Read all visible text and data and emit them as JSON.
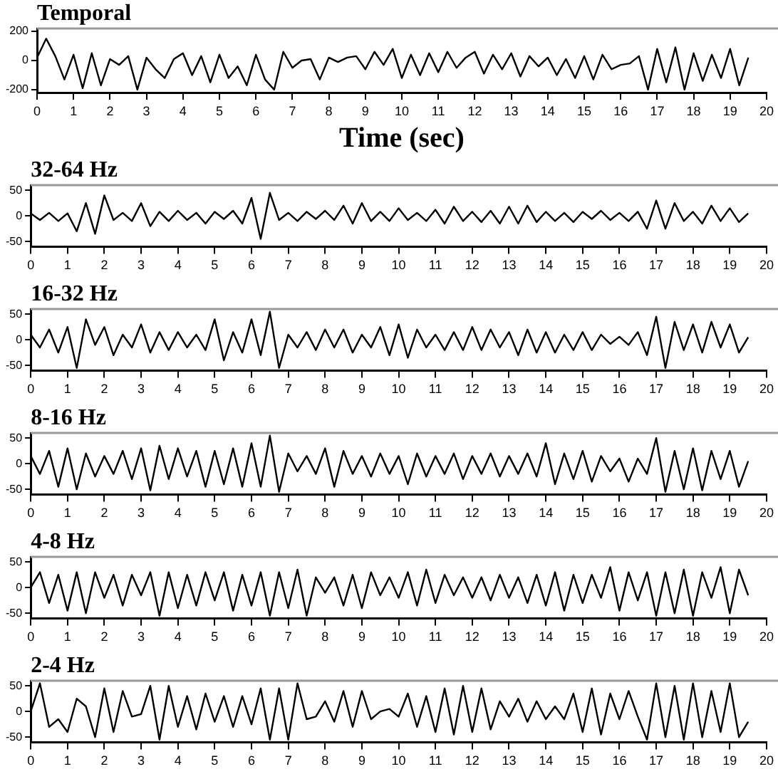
{
  "chart_data": [
    {
      "type": "line",
      "title": "Temporal",
      "xlabel": "Time (sec)",
      "x": [
        0,
        0.25,
        0.5,
        0.75,
        1,
        1.25,
        1.5,
        1.75,
        2,
        2.25,
        2.5,
        2.75,
        3,
        3.25,
        3.5,
        3.75,
        4,
        4.25,
        4.5,
        4.75,
        5,
        5.25,
        5.5,
        5.75,
        6,
        6.25,
        6.5,
        6.75,
        7,
        7.25,
        7.5,
        7.75,
        8,
        8.25,
        8.5,
        8.75,
        9,
        9.25,
        9.5,
        9.75,
        10,
        10.25,
        10.5,
        10.75,
        11,
        11.25,
        11.5,
        11.75,
        12,
        12.25,
        12.5,
        12.75,
        13,
        13.25,
        13.5,
        13.75,
        14,
        14.25,
        14.5,
        14.75,
        15,
        15.25,
        15.5,
        15.75,
        16,
        16.25,
        16.5,
        16.75,
        17,
        17.25,
        17.5,
        17.75,
        18,
        18.25,
        18.5,
        18.75,
        19,
        19.25,
        19.5
      ],
      "values": [
        20,
        150,
        30,
        -130,
        40,
        -190,
        50,
        -170,
        10,
        -30,
        30,
        -200,
        20,
        -60,
        -120,
        10,
        50,
        -100,
        30,
        -150,
        40,
        -120,
        -40,
        -170,
        40,
        -130,
        -200,
        60,
        -50,
        0,
        10,
        -130,
        20,
        -10,
        20,
        30,
        -60,
        60,
        -30,
        80,
        -120,
        40,
        -100,
        50,
        -80,
        60,
        -50,
        20,
        60,
        -90,
        40,
        -60,
        50,
        -110,
        30,
        -40,
        20,
        -100,
        10,
        -120,
        30,
        -130,
        40,
        -60,
        -30,
        -20,
        30,
        -200,
        80,
        -150,
        90,
        -200,
        50,
        -140,
        40,
        -120,
        80,
        -170,
        20
      ],
      "color": "#000000",
      "xlim": [
        0,
        20
      ],
      "xticks": [
        0,
        1,
        2,
        3,
        4,
        5,
        6,
        7,
        8,
        9,
        10,
        11,
        12,
        13,
        14,
        15,
        16,
        17,
        18,
        19,
        20
      ],
      "ylim": [
        -220,
        220
      ],
      "yticks": [
        -200,
        0,
        200
      ],
      "legend": false
    },
    {
      "type": "line",
      "title": "32-64 Hz",
      "x": [
        0,
        0.25,
        0.5,
        0.75,
        1,
        1.25,
        1.5,
        1.75,
        2,
        2.25,
        2.5,
        2.75,
        3,
        3.25,
        3.5,
        3.75,
        4,
        4.25,
        4.5,
        4.75,
        5,
        5.25,
        5.5,
        5.75,
        6,
        6.25,
        6.5,
        6.75,
        7,
        7.25,
        7.5,
        7.75,
        8,
        8.25,
        8.5,
        8.75,
        9,
        9.25,
        9.5,
        9.75,
        10,
        10.25,
        10.5,
        10.75,
        11,
        11.25,
        11.5,
        11.75,
        12,
        12.25,
        12.5,
        12.75,
        13,
        13.25,
        13.5,
        13.75,
        14,
        14.25,
        14.5,
        14.75,
        15,
        15.25,
        15.5,
        15.75,
        16,
        16.25,
        16.5,
        16.75,
        17,
        17.25,
        17.5,
        17.75,
        18,
        18.25,
        18.5,
        18.75,
        19,
        19.25,
        19.5
      ],
      "values": [
        5,
        -8,
        6,
        -10,
        5,
        -30,
        25,
        -35,
        40,
        -8,
        6,
        -10,
        25,
        -20,
        8,
        -10,
        10,
        -8,
        6,
        -15,
        8,
        -6,
        10,
        -15,
        35,
        -45,
        45,
        -8,
        6,
        -10,
        8,
        -6,
        10,
        -8,
        20,
        -15,
        25,
        -10,
        8,
        -10,
        15,
        -8,
        6,
        -10,
        12,
        -15,
        18,
        -10,
        8,
        -12,
        10,
        -15,
        18,
        -15,
        20,
        -12,
        8,
        -10,
        6,
        -12,
        8,
        -6,
        10,
        -8,
        6,
        -10,
        8,
        -25,
        30,
        -25,
        25,
        -10,
        8,
        -15,
        20,
        -10,
        15,
        -12,
        5
      ],
      "color": "#000000",
      "xlim": [
        0,
        20
      ],
      "xticks": [
        0,
        1,
        2,
        3,
        4,
        5,
        6,
        7,
        8,
        9,
        10,
        11,
        12,
        13,
        14,
        15,
        16,
        17,
        18,
        19,
        20
      ],
      "ylim": [
        -60,
        60
      ],
      "yticks": [
        -50,
        0,
        50
      ],
      "legend": false
    },
    {
      "type": "line",
      "title": "16-32 Hz",
      "x": [
        0,
        0.25,
        0.5,
        0.75,
        1,
        1.25,
        1.5,
        1.75,
        2,
        2.25,
        2.5,
        2.75,
        3,
        3.25,
        3.5,
        3.75,
        4,
        4.25,
        4.5,
        4.75,
        5,
        5.25,
        5.5,
        5.75,
        6,
        6.25,
        6.5,
        6.75,
        7,
        7.25,
        7.5,
        7.75,
        8,
        8.25,
        8.5,
        8.75,
        9,
        9.25,
        9.5,
        9.75,
        10,
        10.25,
        10.5,
        10.75,
        11,
        11.25,
        11.5,
        11.75,
        12,
        12.25,
        12.5,
        12.75,
        13,
        13.25,
        13.5,
        13.75,
        14,
        14.25,
        14.5,
        14.75,
        15,
        15.25,
        15.5,
        15.75,
        16,
        16.25,
        16.5,
        16.75,
        17,
        17.25,
        17.5,
        17.75,
        18,
        18.25,
        18.5,
        18.75,
        19,
        19.25,
        19.5
      ],
      "values": [
        10,
        -15,
        20,
        -25,
        25,
        -55,
        40,
        -10,
        25,
        -30,
        10,
        -15,
        30,
        -25,
        15,
        -20,
        15,
        -15,
        10,
        -20,
        40,
        -40,
        15,
        -25,
        40,
        -30,
        55,
        -55,
        10,
        -15,
        15,
        -20,
        20,
        -15,
        20,
        -25,
        10,
        -15,
        25,
        -30,
        30,
        -35,
        20,
        -15,
        10,
        -20,
        15,
        -20,
        25,
        -20,
        20,
        -15,
        15,
        -30,
        20,
        -25,
        15,
        -25,
        10,
        -20,
        15,
        -20,
        10,
        -8,
        6,
        -10,
        15,
        -30,
        45,
        -55,
        35,
        -20,
        30,
        -25,
        35,
        -15,
        30,
        -25,
        5
      ],
      "color": "#000000",
      "xlim": [
        0,
        20
      ],
      "xticks": [
        0,
        1,
        2,
        3,
        4,
        5,
        6,
        7,
        8,
        9,
        10,
        11,
        12,
        13,
        14,
        15,
        16,
        17,
        18,
        19,
        20
      ],
      "ylim": [
        -60,
        60
      ],
      "yticks": [
        -50,
        0,
        50
      ],
      "legend": false
    },
    {
      "type": "line",
      "title": "8-16 Hz",
      "x": [
        0,
        0.25,
        0.5,
        0.75,
        1,
        1.25,
        1.5,
        1.75,
        2,
        2.25,
        2.5,
        2.75,
        3,
        3.25,
        3.5,
        3.75,
        4,
        4.25,
        4.5,
        4.75,
        5,
        5.25,
        5.5,
        5.75,
        6,
        6.25,
        6.5,
        6.75,
        7,
        7.25,
        7.5,
        7.75,
        8,
        8.25,
        8.5,
        8.75,
        9,
        9.25,
        9.5,
        9.75,
        10,
        10.25,
        10.5,
        10.75,
        11,
        11.25,
        11.5,
        11.75,
        12,
        12.25,
        12.5,
        12.75,
        13,
        13.25,
        13.5,
        13.75,
        14,
        14.25,
        14.5,
        14.75,
        15,
        15.25,
        15.5,
        15.75,
        16,
        16.25,
        16.5,
        16.75,
        17,
        17.25,
        17.5,
        17.75,
        18,
        18.25,
        18.5,
        18.75,
        19,
        19.25,
        19.5
      ],
      "values": [
        15,
        -20,
        25,
        -45,
        30,
        -50,
        20,
        -25,
        15,
        -20,
        25,
        -30,
        30,
        -52,
        35,
        -30,
        30,
        -25,
        25,
        -45,
        25,
        -40,
        30,
        -45,
        40,
        -45,
        55,
        -55,
        20,
        -15,
        15,
        -20,
        30,
        -45,
        25,
        -20,
        15,
        -25,
        20,
        -20,
        15,
        -40,
        20,
        -25,
        15,
        -20,
        20,
        -30,
        15,
        -20,
        20,
        -25,
        15,
        -20,
        20,
        -25,
        40,
        -40,
        20,
        -30,
        25,
        -35,
        15,
        -15,
        10,
        -35,
        10,
        -20,
        50,
        -55,
        25,
        -50,
        30,
        -52,
        25,
        -30,
        25,
        -45,
        5
      ],
      "color": "#000000",
      "xlim": [
        0,
        20
      ],
      "xticks": [
        0,
        1,
        2,
        3,
        4,
        5,
        6,
        7,
        8,
        9,
        10,
        11,
        12,
        13,
        14,
        15,
        16,
        17,
        18,
        19,
        20
      ],
      "ylim": [
        -60,
        60
      ],
      "yticks": [
        -50,
        0,
        50
      ],
      "legend": false
    },
    {
      "type": "line",
      "title": "4-8 Hz",
      "x": [
        0,
        0.25,
        0.5,
        0.75,
        1,
        1.25,
        1.5,
        1.75,
        2,
        2.25,
        2.5,
        2.75,
        3,
        3.25,
        3.5,
        3.75,
        4,
        4.25,
        4.5,
        4.75,
        5,
        5.25,
        5.5,
        5.75,
        6,
        6.25,
        6.5,
        6.75,
        7,
        7.25,
        7.5,
        7.75,
        8,
        8.25,
        8.5,
        8.75,
        9,
        9.25,
        9.5,
        9.75,
        10,
        10.25,
        10.5,
        10.75,
        11,
        11.25,
        11.5,
        11.75,
        12,
        12.25,
        12.5,
        12.75,
        13,
        13.25,
        13.5,
        13.75,
        14,
        14.25,
        14.5,
        14.75,
        15,
        15.25,
        15.5,
        15.75,
        16,
        16.25,
        16.5,
        16.75,
        17,
        17.25,
        17.5,
        17.75,
        18,
        18.25,
        18.5,
        18.75,
        19,
        19.25,
        19.5
      ],
      "values": [
        0,
        30,
        -30,
        25,
        -45,
        30,
        -50,
        30,
        -20,
        25,
        -35,
        25,
        -15,
        30,
        -55,
        30,
        -40,
        25,
        -35,
        30,
        -25,
        30,
        -45,
        25,
        -35,
        30,
        -55,
        30,
        -40,
        35,
        -55,
        20,
        -10,
        20,
        -35,
        25,
        -40,
        30,
        -15,
        20,
        -20,
        30,
        -35,
        35,
        -30,
        25,
        -15,
        20,
        -20,
        20,
        -25,
        25,
        -20,
        20,
        -30,
        25,
        -35,
        30,
        -45,
        25,
        -30,
        25,
        -20,
        40,
        -45,
        30,
        -25,
        30,
        -55,
        30,
        -50,
        35,
        -55,
        30,
        -20,
        40,
        -50,
        35,
        -15
      ],
      "color": "#000000",
      "xlim": [
        0,
        20
      ],
      "xticks": [
        0,
        1,
        2,
        3,
        4,
        5,
        6,
        7,
        8,
        9,
        10,
        11,
        12,
        13,
        14,
        15,
        16,
        17,
        18,
        19,
        20
      ],
      "ylim": [
        -60,
        60
      ],
      "yticks": [
        -50,
        0,
        50
      ],
      "legend": false
    },
    {
      "type": "line",
      "title": "2-4 Hz",
      "x": [
        0,
        0.25,
        0.5,
        0.75,
        1,
        1.25,
        1.5,
        1.75,
        2,
        2.25,
        2.5,
        2.75,
        3,
        3.25,
        3.5,
        3.75,
        4,
        4.25,
        4.5,
        4.75,
        5,
        5.25,
        5.5,
        5.75,
        6,
        6.25,
        6.5,
        6.75,
        7,
        7.25,
        7.5,
        7.75,
        8,
        8.25,
        8.5,
        8.75,
        9,
        9.25,
        9.5,
        9.75,
        10,
        10.25,
        10.5,
        10.75,
        11,
        11.25,
        11.5,
        11.75,
        12,
        12.25,
        12.5,
        12.75,
        13,
        13.25,
        13.5,
        13.75,
        14,
        14.25,
        14.5,
        14.75,
        15,
        15.25,
        15.5,
        15.75,
        16,
        16.25,
        16.5,
        16.75,
        17,
        17.25,
        17.5,
        17.75,
        18,
        18.25,
        18.5,
        18.75,
        19,
        19.25,
        19.5
      ],
      "values": [
        0,
        55,
        -30,
        -15,
        -40,
        25,
        10,
        -50,
        45,
        -40,
        40,
        -10,
        -5,
        50,
        -55,
        50,
        -30,
        30,
        -35,
        35,
        -20,
        30,
        -30,
        30,
        -25,
        45,
        -55,
        45,
        -55,
        55,
        -15,
        -10,
        20,
        -20,
        40,
        -30,
        40,
        -15,
        0,
        5,
        -10,
        35,
        -30,
        30,
        -40,
        45,
        -45,
        50,
        -40,
        45,
        -35,
        20,
        -10,
        25,
        -20,
        20,
        -15,
        10,
        -15,
        35,
        -40,
        45,
        -45,
        35,
        -15,
        40,
        -10,
        -55,
        55,
        -50,
        50,
        -55,
        55,
        -50,
        40,
        -40,
        55,
        -50,
        -20
      ],
      "color": "#000000",
      "xlim": [
        0,
        20
      ],
      "xticks": [
        0,
        1,
        2,
        3,
        4,
        5,
        6,
        7,
        8,
        9,
        10,
        11,
        12,
        13,
        14,
        15,
        16,
        17,
        18,
        19,
        20
      ],
      "ylim": [
        -60,
        60
      ],
      "yticks": [
        -50,
        0,
        50
      ],
      "legend": false
    }
  ]
}
